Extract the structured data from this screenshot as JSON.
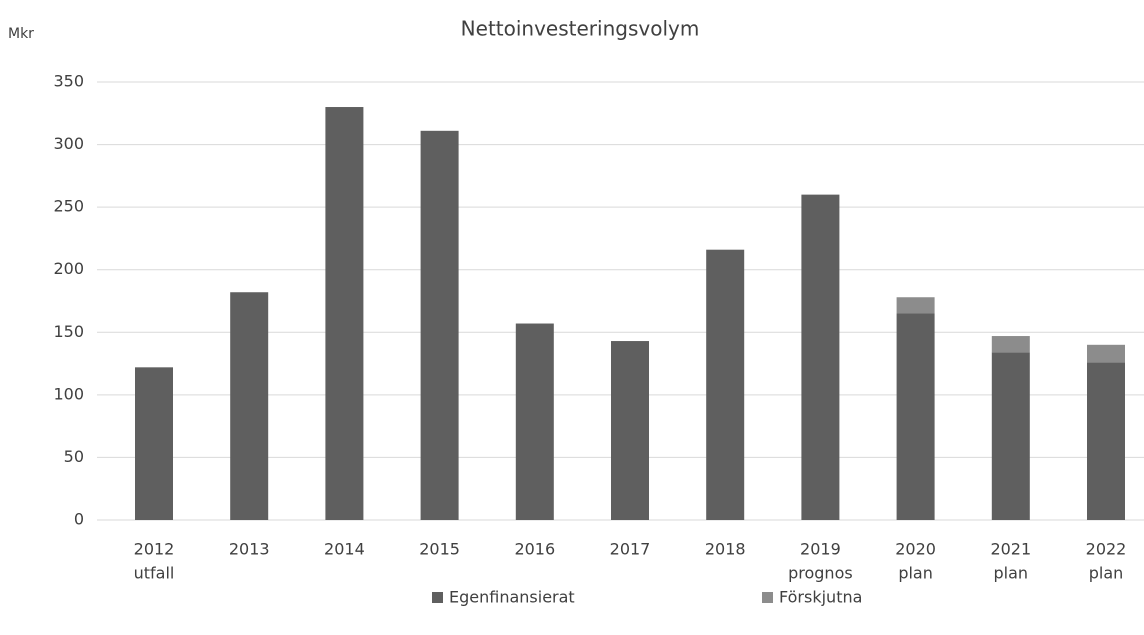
{
  "chart_data": {
    "type": "stacked_bar",
    "title": "Nettoinvesteringsvolym",
    "y_label": "Mkr",
    "categories": [
      [
        "2012",
        "utfall"
      ],
      [
        "2013"
      ],
      [
        "2014"
      ],
      [
        "2015"
      ],
      [
        "2016"
      ],
      [
        "2017"
      ],
      [
        "2018"
      ],
      [
        "2019",
        "prognos"
      ],
      [
        "2020",
        "plan"
      ],
      [
        "2021",
        "plan"
      ],
      [
        "2022",
        "plan"
      ]
    ],
    "series": [
      {
        "name": "Egenfinansierat",
        "color": "#5f5f5f",
        "values": [
          122,
          182,
          330,
          311,
          157,
          143,
          216,
          260,
          165,
          134,
          126
        ]
      },
      {
        "name": "Förskjutna",
        "color": "#8c8c8c",
        "values": [
          0,
          0,
          0,
          0,
          0,
          0,
          0,
          0,
          13,
          13,
          14
        ]
      }
    ],
    "ylim": [
      0,
      350
    ],
    "yticks": [
      0,
      50,
      100,
      150,
      200,
      250,
      300,
      350
    ],
    "grid": true,
    "legend": "bottom"
  }
}
